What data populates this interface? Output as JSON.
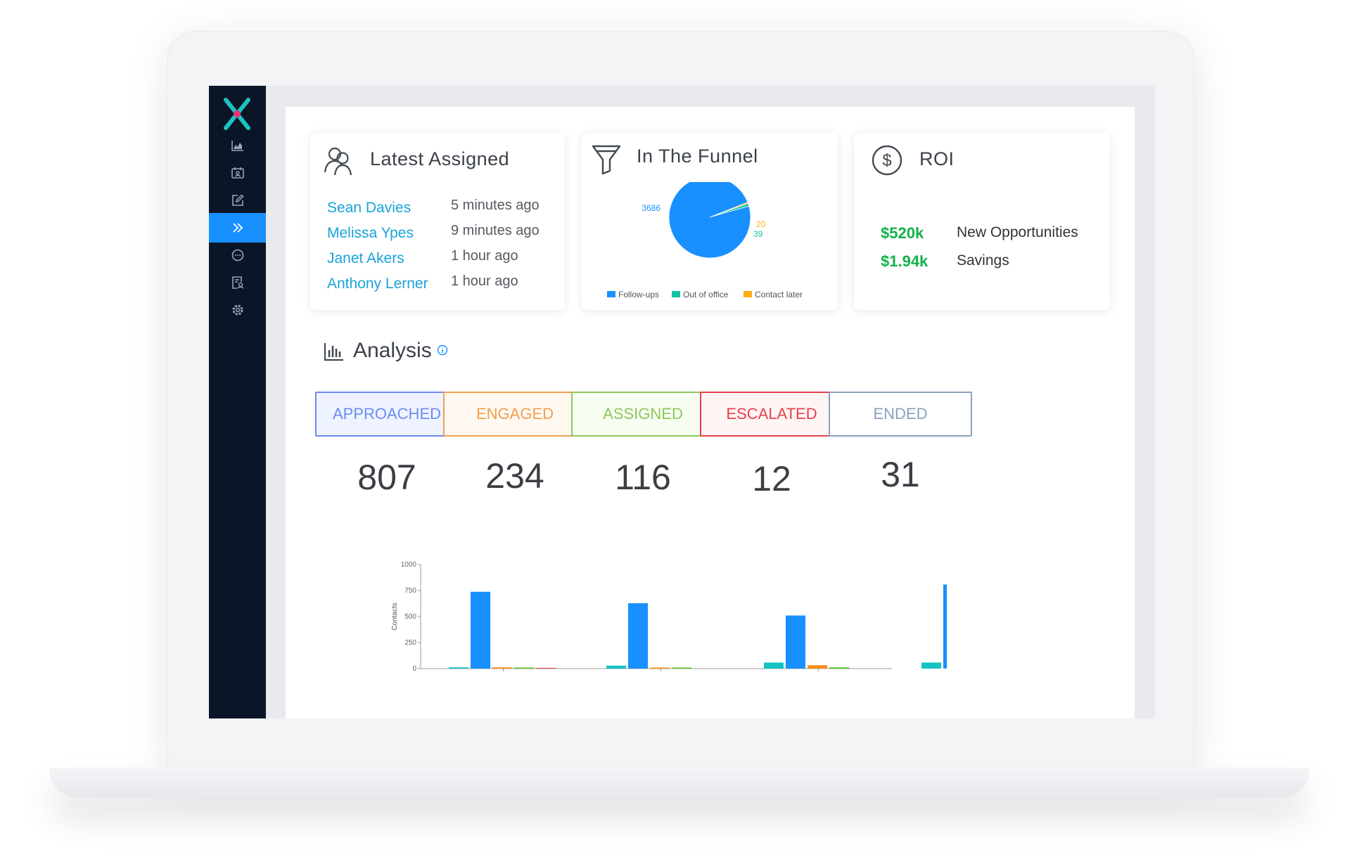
{
  "sidebar": {
    "items": [
      {
        "icon": "area-chart-icon"
      },
      {
        "icon": "contact-card-icon"
      },
      {
        "icon": "edit-icon"
      },
      {
        "icon": "double-chevron-right-icon",
        "active": true
      },
      {
        "icon": "message-icon"
      },
      {
        "icon": "report-icon"
      },
      {
        "icon": "settings-icon"
      }
    ],
    "colors": {
      "background": "#0a1628",
      "active": "#1890ff"
    }
  },
  "latest_assigned": {
    "title": "Latest Assigned",
    "rows": [
      {
        "name": "Sean Davies",
        "time": "5 minutes ago"
      },
      {
        "name": "Melissa Ypes",
        "time": "9 minutes ago"
      },
      {
        "name": "Janet Akers",
        "time": "1 hour ago"
      },
      {
        "name": "Anthony Lerner",
        "time": "1 hour ago"
      }
    ]
  },
  "funnel": {
    "title": "In The Funnel",
    "pie_labels": [
      "3686",
      "20",
      "39"
    ]
  },
  "roi": {
    "title": "ROI",
    "rows": [
      {
        "value": "$520k",
        "label": "New Opportunities"
      },
      {
        "value": "$1.94k",
        "label": "Savings"
      }
    ]
  },
  "analysis": {
    "title": "Analysis",
    "stats": [
      {
        "label": "APPROACHED",
        "value": "807",
        "color": "#6d8cf2",
        "bg": "#eef3ff"
      },
      {
        "label": "ENGAGED",
        "value": "234",
        "color": "#f0a050",
        "bg": "#fff8f0"
      },
      {
        "label": "ASSIGNED",
        "value": "116",
        "color": "#8cc85a",
        "bg": "#f8fdf2"
      },
      {
        "label": "ESCALATED",
        "value": "12",
        "color": "#e8404a",
        "bg": "#fff5f5"
      },
      {
        "label": "ENDED",
        "value": "31",
        "color": "#8aa0c0",
        "bg": "#ffffff"
      }
    ]
  },
  "chart_data": [
    {
      "type": "pie",
      "labels": [
        "Follow-ups",
        "Out of office",
        "Contact later"
      ],
      "values": [
        3686,
        39,
        20
      ],
      "colors": [
        "#1890ff",
        "#13c2a2",
        "#faad14"
      ],
      "legend": "bottom"
    },
    {
      "type": "bar",
      "ylabel": "Contacts",
      "ylim": [
        0,
        1000
      ],
      "yticks": [
        0,
        250,
        500,
        750,
        1000
      ],
      "categories": [
        "",
        "",
        "",
        ""
      ],
      "series": [
        {
          "values": [
            12,
            28,
            58,
            58
          ],
          "color": "#13c2c2"
        },
        {
          "values": [
            738,
            628,
            510,
            808
          ],
          "color": "#1890ff"
        },
        {
          "values": [
            12,
            10,
            32,
            42
          ],
          "color": "#fa8c16"
        },
        {
          "values": [
            10,
            10,
            12,
            8
          ],
          "color": "#52c41a"
        },
        {
          "values": [
            6,
            0,
            0,
            6
          ],
          "color": "#f5222d"
        }
      ]
    }
  ]
}
